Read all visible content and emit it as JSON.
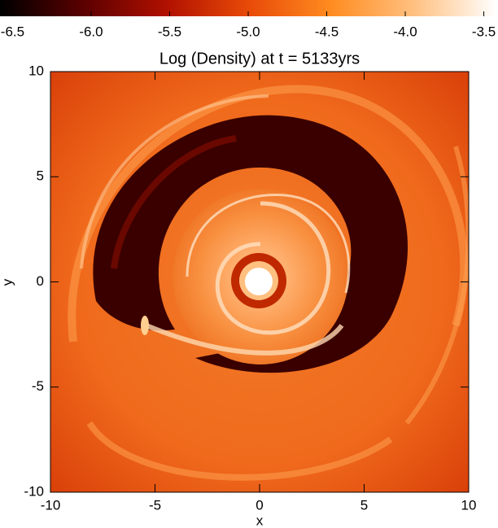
{
  "chart_data": {
    "type": "image",
    "title": "Log (Density) at t = 5133yrs",
    "x_label": "x",
    "y_label": "y",
    "xlim": [
      -10,
      10
    ],
    "ylim": [
      -10,
      10
    ],
    "xticks": [
      -10,
      -5,
      0,
      5,
      10
    ],
    "yticks": [
      -10,
      -5,
      0,
      5,
      10
    ],
    "colorbar": {
      "clim": [
        -6.58,
        -3.42
      ],
      "ticks": [
        -6.5,
        -6.0,
        -5.5,
        -5.0,
        -4.5,
        -4.0,
        -3.5
      ],
      "tick_labels": [
        "-6.5",
        "-6.0",
        "-5.5",
        "-5.0",
        "-4.5",
        "-4.0",
        "-3.5"
      ],
      "colormap": [
        "#000000",
        "#5a0000",
        "#b01000",
        "#e84a08",
        "#ff8c20",
        "#ffc080",
        "#ffffff"
      ]
    }
  }
}
